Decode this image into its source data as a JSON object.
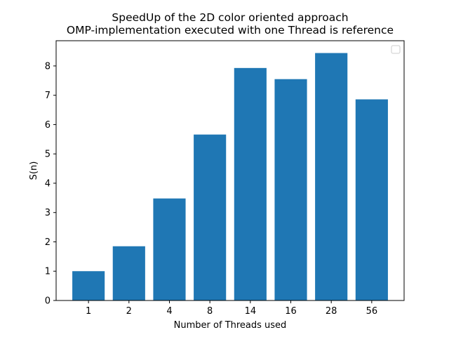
{
  "chart_data": {
    "type": "bar",
    "title_lines": [
      "SpeedUp of the 2D color oriented approach",
      "OMP-implementation executed with one Thread is reference"
    ],
    "xlabel": "Number of Threads used",
    "ylabel": "S(n)",
    "categories": [
      "1",
      "2",
      "4",
      "8",
      "14",
      "16",
      "28",
      "56"
    ],
    "values": [
      1.0,
      1.85,
      3.48,
      5.66,
      7.93,
      7.55,
      8.44,
      6.86
    ],
    "ylim": [
      0,
      8.86
    ],
    "yticks": [
      0,
      1,
      2,
      3,
      4,
      5,
      6,
      7,
      8
    ],
    "bar_color": "#1f77b4",
    "grid": false,
    "legend": "top-right (empty)"
  }
}
